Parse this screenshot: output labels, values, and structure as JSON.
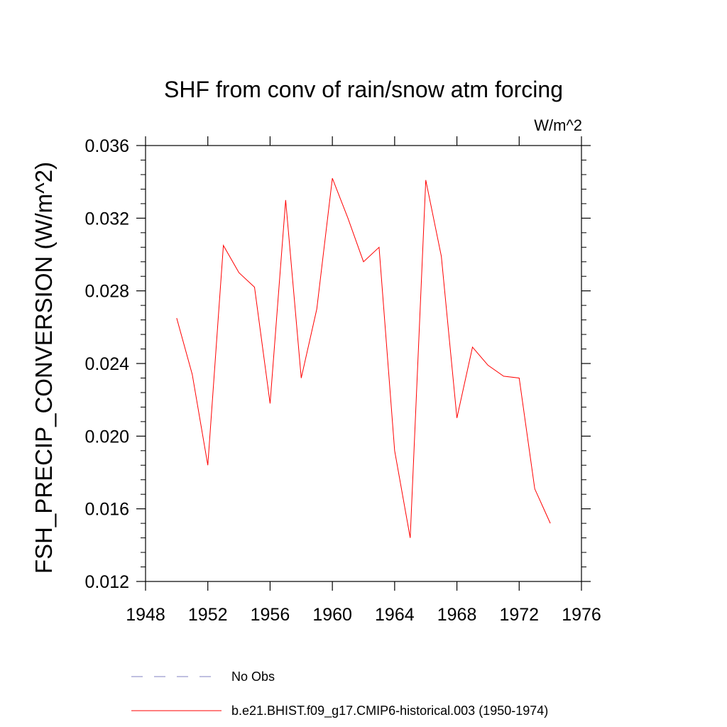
{
  "chart_data": {
    "type": "line",
    "title": "SHF from conv of rain/snow atm forcing",
    "units": "W/m^2",
    "ylabel": "FSH_PRECIP_CONVERSION  (W/m^2)",
    "xlabel": "",
    "xlim": [
      1948,
      1976
    ],
    "ylim": [
      0.012,
      0.036
    ],
    "xticks": [
      1948,
      1952,
      1956,
      1960,
      1964,
      1968,
      1972,
      1976
    ],
    "yticks": [
      "0.012",
      "0.016",
      "0.020",
      "0.024",
      "0.028",
      "0.032",
      "0.036"
    ],
    "series": [
      {
        "name": "b.e21.BHIST.f09_g17.CMIP6-historical.003 (1950-1974)",
        "color": "#ff0000",
        "style": "solid",
        "x": [
          1950,
          1951,
          1952,
          1953,
          1954,
          1955,
          1956,
          1957,
          1958,
          1959,
          1960,
          1961,
          1962,
          1963,
          1964,
          1965,
          1966,
          1967,
          1968,
          1969,
          1970,
          1971,
          1972,
          1973,
          1974
        ],
        "y": [
          0.0265,
          0.0234,
          0.0184,
          0.0305,
          0.029,
          0.0282,
          0.0218,
          0.033,
          0.0232,
          0.027,
          0.0342,
          0.032,
          0.0296,
          0.0304,
          0.0192,
          0.0144,
          0.0341,
          0.0299,
          0.021,
          0.0249,
          0.0239,
          0.0233,
          0.0232,
          0.0171,
          0.0152
        ]
      }
    ],
    "legend": [
      {
        "label": "No Obs",
        "color": "#8080c0",
        "style": "dashed"
      },
      {
        "label": "b.e21.BHIST.f09_g17.CMIP6-historical.003 (1950-1974)",
        "color": "#ff0000",
        "style": "solid"
      }
    ],
    "legend_position": "bottom"
  }
}
